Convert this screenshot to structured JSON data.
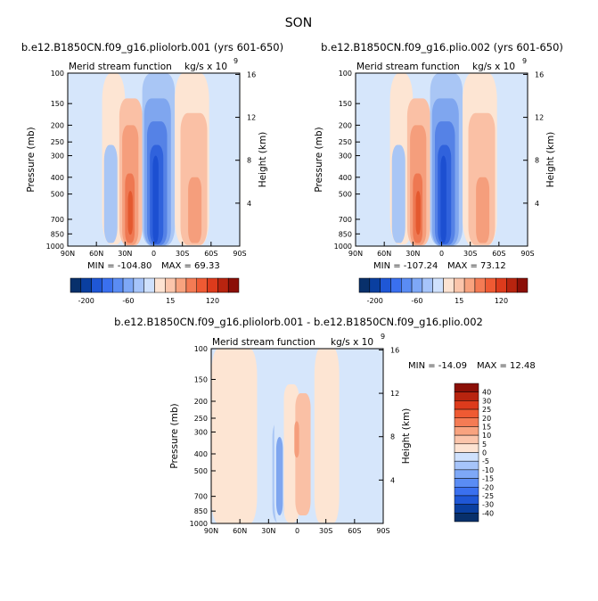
{
  "figure": {
    "season": "SON",
    "diff_title": "b.e12.B1850CN.f09_g16.pliolorb.001 - b.e12.B1850CN.f09_g16.plio.002"
  },
  "chart_data": [
    {
      "type": "heatmap",
      "title": "b.e12.B1850CN.f09_g16.pliolorb.001 (yrs 601-650)",
      "subtitle_left": "Merid stream function",
      "subtitle_right": "kg/s x 10",
      "units_exponent": "9",
      "xlabel": "",
      "ylabel": "Pressure (mb)",
      "ylabel_right": "Height (km)",
      "x_ticks": [
        "90N",
        "60N",
        "30N",
        "0",
        "30S",
        "60S",
        "90S"
      ],
      "y_ticks": [
        "100",
        "150",
        "200",
        "250",
        "300",
        "400",
        "500",
        "700",
        "850",
        "1000"
      ],
      "y_right_ticks": [
        "16",
        "12",
        "8",
        "4"
      ],
      "min_label": "MIN = -104.80",
      "max_label": "MAX = 69.33",
      "min": -104.8,
      "max": 69.33,
      "colorbar": {
        "orientation": "horizontal",
        "labels": [
          "-200",
          "-60",
          "15",
          "120"
        ],
        "colors": [
          "#08306b",
          "#0a3fa0",
          "#1f57d6",
          "#3a70ef",
          "#5a8cf4",
          "#7ea8f7",
          "#a6c4fa",
          "#cfe1fd",
          "#fde3d2",
          "#fbc5ab",
          "#f8a37f",
          "#f47b54",
          "#ef5a33",
          "#dd3b1c",
          "#b8240f",
          "#8b0f07"
        ]
      }
    },
    {
      "type": "heatmap",
      "title": "b.e12.B1850CN.f09_g16.plio.002 (yrs 601-650)",
      "subtitle_left": "Merid stream function",
      "subtitle_right": "kg/s x 10",
      "units_exponent": "9",
      "xlabel": "",
      "ylabel": "Pressure (mb)",
      "ylabel_right": "Height (km)",
      "x_ticks": [
        "90N",
        "60N",
        "30N",
        "0",
        "30S",
        "60S",
        "90S"
      ],
      "y_ticks": [
        "100",
        "150",
        "200",
        "250",
        "300",
        "400",
        "500",
        "700",
        "850",
        "1000"
      ],
      "y_right_ticks": [
        "16",
        "12",
        "8",
        "4"
      ],
      "min_label": "MIN = -107.24",
      "max_label": "MAX = 73.12",
      "min": -107.24,
      "max": 73.12,
      "colorbar": {
        "orientation": "horizontal",
        "labels": [
          "-200",
          "-60",
          "15",
          "120"
        ],
        "colors": [
          "#08306b",
          "#0a3fa0",
          "#1f57d6",
          "#3a70ef",
          "#5a8cf4",
          "#7ea8f7",
          "#a6c4fa",
          "#cfe1fd",
          "#fde3d2",
          "#fbc5ab",
          "#f8a37f",
          "#f47b54",
          "#ef5a33",
          "#dd3b1c",
          "#b8240f",
          "#8b0f07"
        ]
      }
    },
    {
      "type": "heatmap",
      "title": "",
      "subtitle_left": "Merid stream function",
      "subtitle_right": "kg/s x 10",
      "units_exponent": "9",
      "xlabel": "",
      "ylabel": "Pressure (mb)",
      "ylabel_right": "Height (km)",
      "x_ticks": [
        "90N",
        "60N",
        "30N",
        "0",
        "30S",
        "60S",
        "90S"
      ],
      "y_ticks": [
        "100",
        "150",
        "200",
        "250",
        "300",
        "400",
        "500",
        "700",
        "850",
        "1000"
      ],
      "y_right_ticks": [
        "16",
        "12",
        "8",
        "4"
      ],
      "min_label": "MIN = -14.09",
      "max_label": "MAX =  12.48",
      "min": -14.09,
      "max": 12.48,
      "colorbar": {
        "orientation": "vertical",
        "labels": [
          "40",
          "30",
          "25",
          "20",
          "15",
          "10",
          "5",
          "0",
          "-5",
          "-10",
          "-15",
          "-20",
          "-25",
          "-30",
          "-40"
        ],
        "colors": [
          "#8b0f07",
          "#b8240f",
          "#dd3b1c",
          "#ef5a33",
          "#f47b54",
          "#f8a37f",
          "#fbc5ab",
          "#fde3d2",
          "#cfe1fd",
          "#a6c4fa",
          "#7ea8f7",
          "#5a8cf4",
          "#3a70ef",
          "#1f57d6",
          "#0a3fa0",
          "#08306b"
        ]
      }
    }
  ]
}
